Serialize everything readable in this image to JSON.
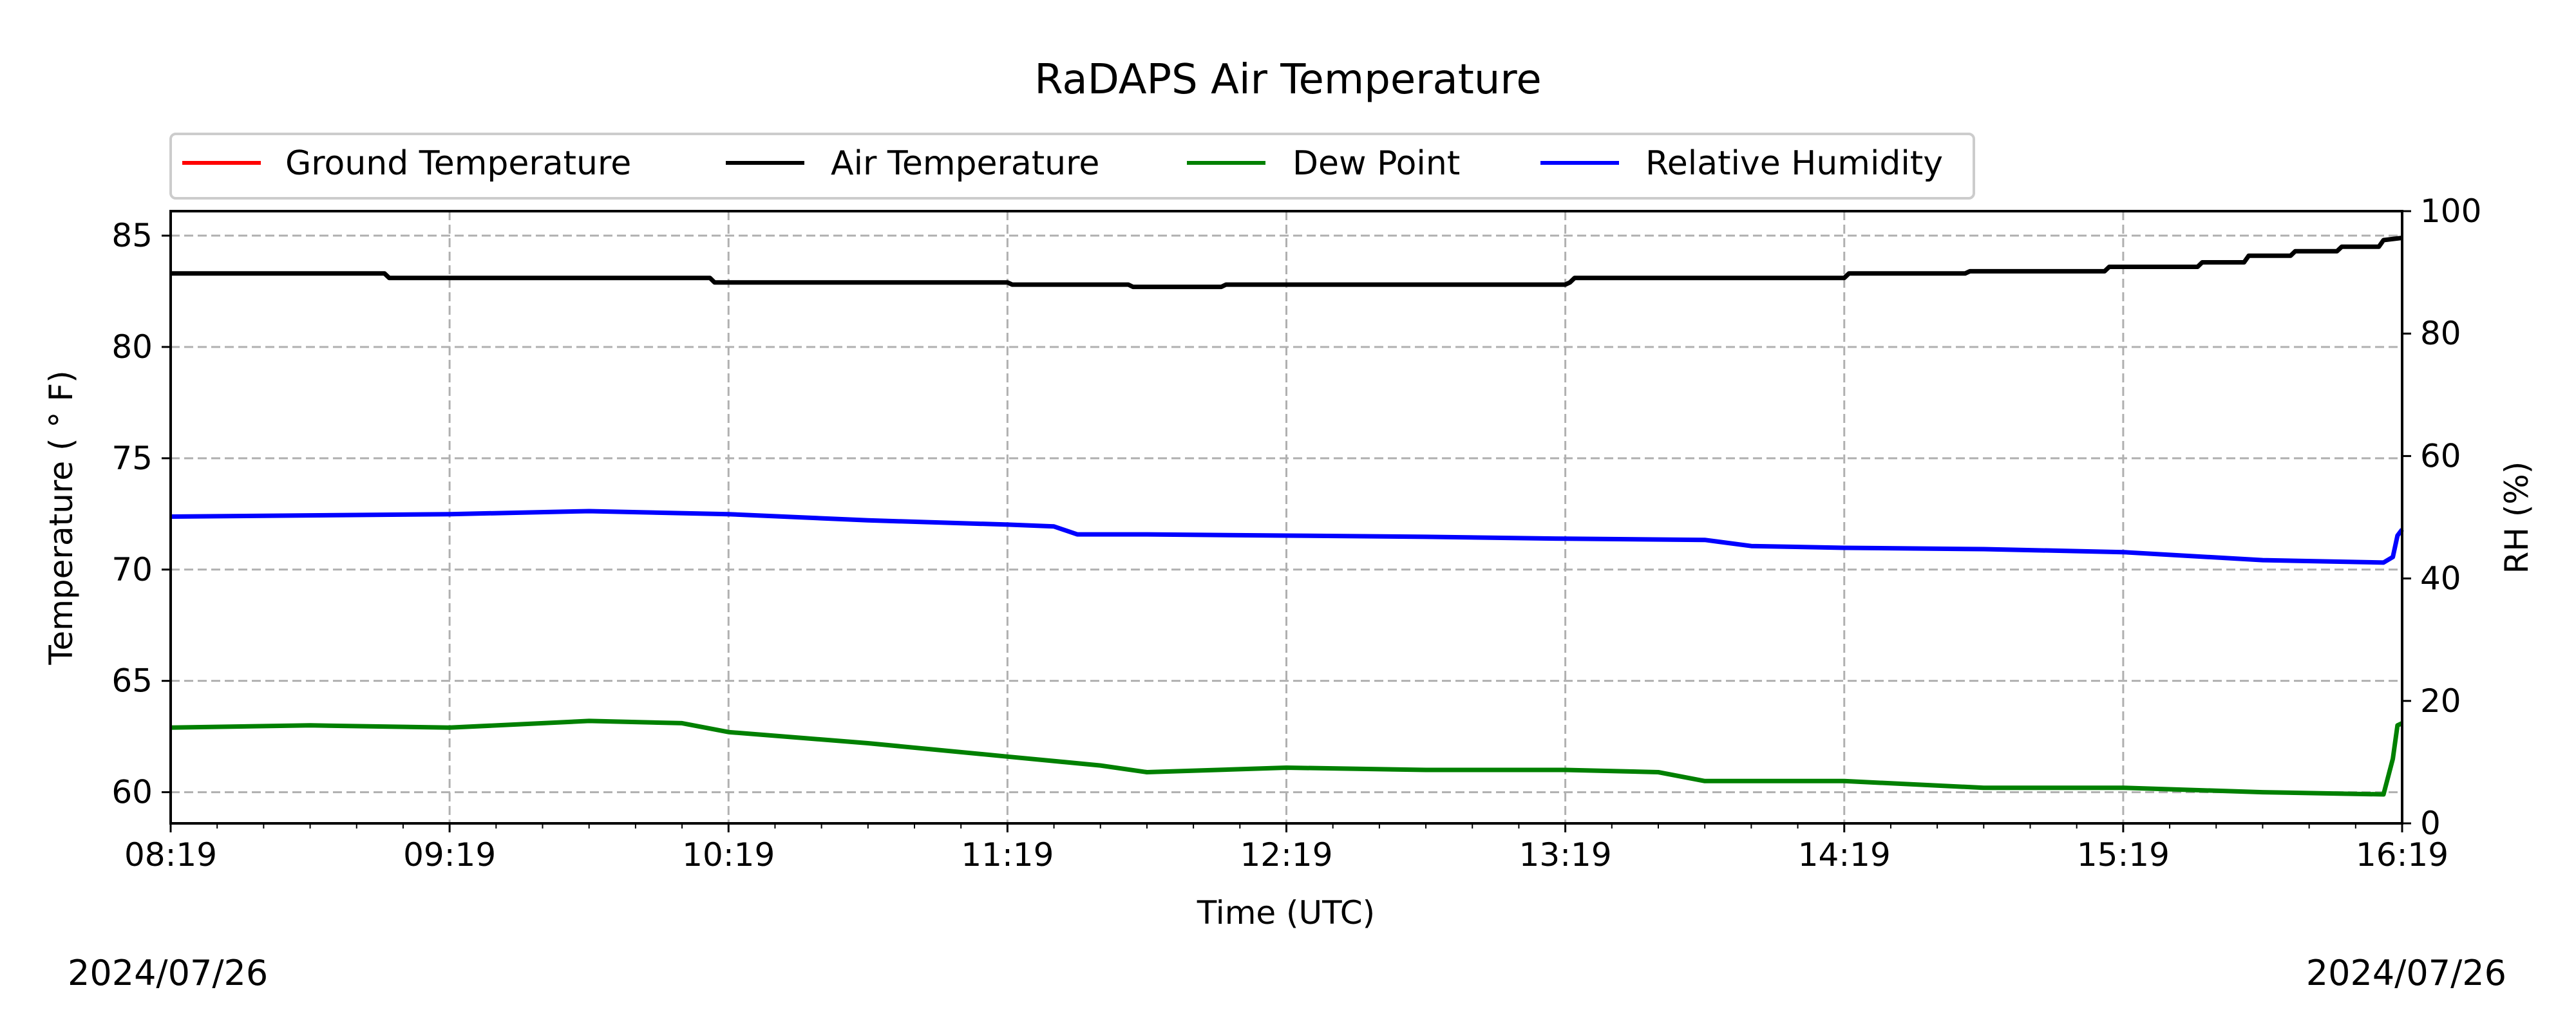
{
  "chart_data": {
    "type": "line",
    "title": "RaDAPS Air Temperature",
    "xlabel": "Time (UTC)",
    "ylabel": "Temperature ( ° F)",
    "y2label": "RH (%)",
    "x_ticks": [
      "08:19",
      "09:19",
      "10:19",
      "11:19",
      "12:19",
      "13:19",
      "14:19",
      "15:19",
      "16:19"
    ],
    "xlim": [
      "08:19",
      "16:19"
    ],
    "ylim": [
      58.6,
      86.1
    ],
    "y_ticks": [
      60,
      65,
      70,
      75,
      80,
      85
    ],
    "y2lim": [
      0,
      100
    ],
    "y2_ticks": [
      0,
      20,
      40,
      60,
      80,
      100
    ],
    "grid": true,
    "legend_position": "top-left",
    "date_left": "2024/07/26",
    "date_right": "2024/07/26",
    "series": [
      {
        "name": "Ground Temperature",
        "color": "#ff0000",
        "axis": "left",
        "x": [],
        "values": []
      },
      {
        "name": "Air Temperature",
        "color": "#000000",
        "axis": "left",
        "x": [
          "08:19",
          "09:05",
          "09:06",
          "10:15",
          "10:16",
          "11:19",
          "11:20",
          "11:45",
          "11:46",
          "12:05",
          "12:06",
          "13:19",
          "13:20",
          "13:20",
          "13:21",
          "14:19",
          "14:20",
          "14:45",
          "14:46",
          "15:15",
          "15:16",
          "15:35",
          "15:36",
          "15:45",
          "15:46",
          "15:55",
          "15:56",
          "16:05",
          "16:06",
          "16:14",
          "16:15",
          "16:19"
        ],
        "values": [
          83.3,
          83.3,
          83.1,
          83.1,
          82.9,
          82.9,
          82.8,
          82.8,
          82.7,
          82.7,
          82.8,
          82.8,
          82.9,
          82.9,
          83.1,
          83.1,
          83.3,
          83.3,
          83.4,
          83.4,
          83.6,
          83.6,
          83.8,
          83.8,
          84.1,
          84.1,
          84.3,
          84.3,
          84.5,
          84.5,
          84.8,
          84.9
        ]
      },
      {
        "name": "Dew Point",
        "color": "#008000",
        "axis": "left",
        "x": [
          "08:19",
          "08:49",
          "09:19",
          "09:49",
          "10:09",
          "10:19",
          "10:49",
          "11:19",
          "11:39",
          "11:49",
          "12:19",
          "12:49",
          "13:19",
          "13:39",
          "13:49",
          "14:19",
          "14:49",
          "15:19",
          "15:49",
          "16:15",
          "16:17",
          "16:18",
          "16:19"
        ],
        "values": [
          62.9,
          63.0,
          62.9,
          63.2,
          63.1,
          62.7,
          62.2,
          61.6,
          61.2,
          60.9,
          61.1,
          61.0,
          61.0,
          60.9,
          60.5,
          60.5,
          60.2,
          60.2,
          60.0,
          59.9,
          61.5,
          63.0,
          63.1
        ]
      },
      {
        "name": "Relative Humidity",
        "color": "#0000ff",
        "axis": "right",
        "x": [
          "08:19",
          "09:19",
          "09:49",
          "10:19",
          "10:49",
          "11:19",
          "11:29",
          "11:34",
          "11:49",
          "12:19",
          "12:49",
          "13:19",
          "13:49",
          "13:59",
          "14:19",
          "14:49",
          "15:19",
          "15:49",
          "16:15",
          "16:17",
          "16:18",
          "16:19"
        ],
        "values": [
          50.1,
          50.5,
          51.0,
          50.5,
          49.5,
          48.8,
          48.5,
          47.2,
          47.2,
          47.0,
          46.8,
          46.5,
          46.3,
          45.3,
          45.0,
          44.8,
          44.3,
          43.0,
          42.6,
          43.5,
          47.0,
          48.0
        ]
      }
    ]
  }
}
